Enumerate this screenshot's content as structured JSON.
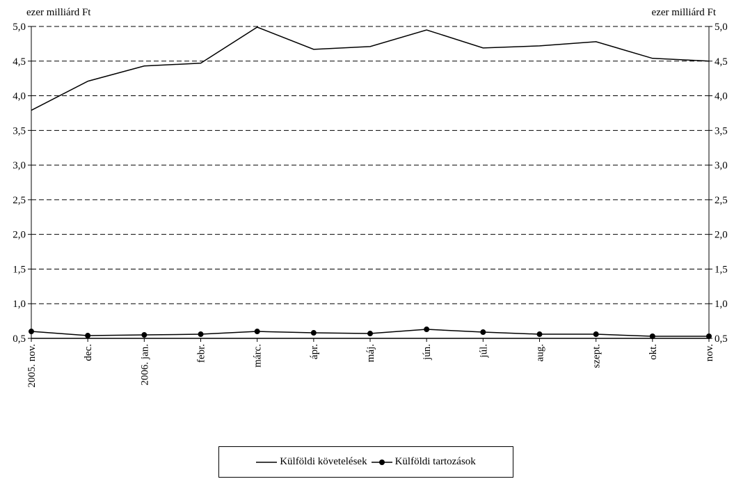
{
  "chart_data": {
    "type": "line",
    "unit_left": "ezer milliárd Ft",
    "unit_right": "ezer milliárd Ft",
    "categories": [
      "2005. nov.",
      "dec.",
      "2006. jan.",
      "febr.",
      "márc.",
      "ápr.",
      "máj.",
      "jún.",
      "júl.",
      "aug.",
      "szept.",
      "okt.",
      "nov."
    ],
    "ylim": [
      0.5,
      5.0
    ],
    "yticks": [
      "0,5",
      "1,0",
      "1,5",
      "2,0",
      "2,5",
      "3,0",
      "3,5",
      "4,0",
      "4,5",
      "5,0"
    ],
    "grid": "dashed horizontal",
    "legend_position": "bottom-center",
    "series": [
      {
        "name": "Külföldi követelések",
        "marker": "none",
        "color": "#000000",
        "values": [
          3.79,
          4.21,
          4.43,
          4.47,
          4.99,
          4.67,
          4.71,
          4.95,
          4.69,
          4.72,
          4.78,
          4.54,
          4.5
        ]
      },
      {
        "name": "Külföldi tartozások",
        "marker": "circle",
        "color": "#000000",
        "values": [
          0.6,
          0.54,
          0.55,
          0.56,
          0.6,
          0.58,
          0.57,
          0.63,
          0.59,
          0.56,
          0.56,
          0.53,
          0.53
        ]
      }
    ]
  }
}
